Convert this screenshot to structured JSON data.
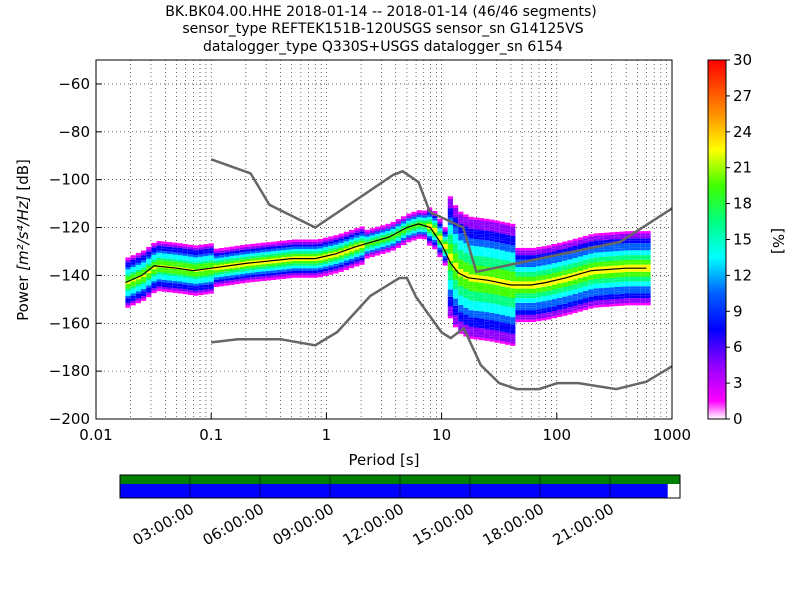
{
  "header": {
    "title_line1": "BK.BK04.00.HHE   2018-01-14 -- 2018-01-14  (46/46 segments)",
    "title_line2": "sensor_type REFTEK151B-120USGS sensor_sn G14125VS",
    "title_line3": "datalogger_type Q330S+USGS datalogger_sn 6154"
  },
  "colorbar": {
    "label": "[%]",
    "ticks": [
      "0",
      "3",
      "6",
      "9",
      "12",
      "15",
      "18",
      "21",
      "24",
      "27",
      "30"
    ],
    "range": [
      0,
      30
    ]
  },
  "availability": {
    "green_color": "#008000",
    "blue_color": "#0000ff",
    "time_ticks": [
      "03:00:00",
      "06:00:00",
      "09:00:00",
      "12:00:00",
      "15:00:00",
      "18:00:00",
      "21:00:00"
    ],
    "blue_coverage_fraction": 0.978
  },
  "chart_data": {
    "type": "heatmap",
    "xlabel": "Period [s]",
    "ylabel_prefix": "Power ",
    "ylabel_units": "[m²/s⁴/Hz]",
    "ylabel_suffix": " [dB]",
    "xscale": "log",
    "xlim": [
      0.01,
      1000
    ],
    "ylim": [
      -200,
      -50
    ],
    "xticks": [
      {
        "value": 0.01,
        "label": "0.01"
      },
      {
        "value": 0.1,
        "label": "0.1"
      },
      {
        "value": 1,
        "label": "1"
      },
      {
        "value": 10,
        "label": "10"
      },
      {
        "value": 100,
        "label": "100"
      },
      {
        "value": 1000,
        "label": "1000"
      }
    ],
    "yticks": [
      {
        "value": -60,
        "label": "−60"
      },
      {
        "value": -80,
        "label": "−80"
      },
      {
        "value": -100,
        "label": "−100"
      },
      {
        "value": -120,
        "label": "−120"
      },
      {
        "value": -140,
        "label": "−140"
      },
      {
        "value": -160,
        "label": "−160"
      },
      {
        "value": -180,
        "label": "−180"
      },
      {
        "value": -200,
        "label": "−200"
      }
    ],
    "grid": true,
    "noise_model_color": "#666666",
    "nhnm": [
      [
        0.1,
        -91.5
      ],
      [
        0.22,
        -97.4
      ],
      [
        0.32,
        -110.5
      ],
      [
        0.8,
        -120
      ],
      [
        3.8,
        -98
      ],
      [
        4.6,
        -96.5
      ],
      [
        6.3,
        -101
      ],
      [
        7.9,
        -113.5
      ],
      [
        15.4,
        -120
      ],
      [
        20,
        -138.5
      ],
      [
        354.8,
        -126
      ],
      [
        1000,
        -112
      ]
    ],
    "nlnm": [
      [
        0.1,
        -168
      ],
      [
        0.17,
        -166.7
      ],
      [
        0.4,
        -166.7
      ],
      [
        0.8,
        -169.2
      ],
      [
        1.24,
        -163.7
      ],
      [
        2.4,
        -148.6
      ],
      [
        4.3,
        -141.1
      ],
      [
        5,
        -141.1
      ],
      [
        6,
        -149
      ],
      [
        10,
        -163.8
      ],
      [
        12,
        -166.2
      ],
      [
        15.6,
        -162.1
      ],
      [
        21.9,
        -177.5
      ],
      [
        31.6,
        -185
      ],
      [
        45,
        -187.5
      ],
      [
        70,
        -187.5
      ],
      [
        101,
        -185
      ],
      [
        154,
        -185
      ],
      [
        328,
        -187.5
      ],
      [
        600,
        -184.4
      ],
      [
        1000,
        -178
      ]
    ],
    "mean_psd": [
      [
        0.018,
        -143
      ],
      [
        0.025,
        -140
      ],
      [
        0.032,
        -136
      ],
      [
        0.05,
        -137
      ],
      [
        0.07,
        -138
      ],
      [
        0.1,
        -137
      ],
      [
        0.2,
        -135
      ],
      [
        0.5,
        -133
      ],
      [
        0.8,
        -133
      ],
      [
        1.2,
        -131
      ],
      [
        1.8,
        -128
      ],
      [
        2.5,
        -126
      ],
      [
        3.5,
        -124
      ],
      [
        5,
        -120
      ],
      [
        6.3,
        -118.5
      ],
      [
        8,
        -120
      ],
      [
        10,
        -127
      ],
      [
        12,
        -135
      ],
      [
        14,
        -139
      ],
      [
        17,
        -141
      ],
      [
        25,
        -142
      ],
      [
        40,
        -144
      ],
      [
        60,
        -144
      ],
      [
        80,
        -143
      ],
      [
        120,
        -141
      ],
      [
        200,
        -138
      ],
      [
        400,
        -137
      ],
      [
        600,
        -137
      ]
    ]
  }
}
